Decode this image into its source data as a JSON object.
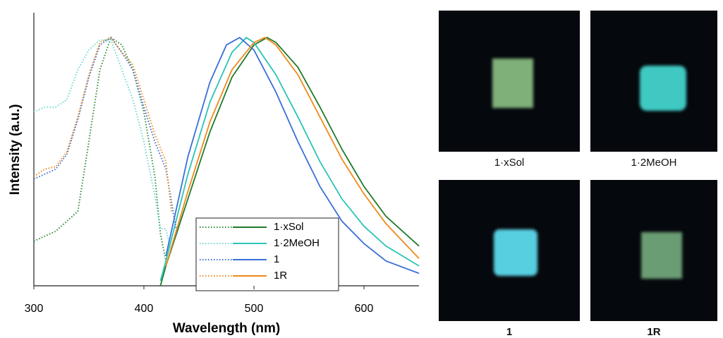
{
  "chart_data": {
    "type": "line",
    "xlabel": "Wavelength (nm)",
    "ylabel": "Intensity (a.u.)",
    "xlim": [
      300,
      650
    ],
    "xticks": [
      300,
      400,
      500,
      600
    ],
    "ylim": [
      0,
      1.1
    ],
    "series": [
      {
        "name": "1·xSol",
        "color": "#1f7a2a",
        "light_color": "#2e8b3a",
        "excitation": {
          "x": [
            300,
            320,
            340,
            350,
            360,
            370,
            380,
            390,
            400,
            410,
            415,
            420
          ],
          "values": [
            0.18,
            0.22,
            0.3,
            0.58,
            0.87,
            1.0,
            0.97,
            0.87,
            0.7,
            0.44,
            0.21,
            0.1
          ]
        },
        "emission": {
          "x": [
            415,
            420,
            440,
            460,
            480,
            500,
            512,
            520,
            540,
            560,
            580,
            600,
            620,
            650
          ],
          "values": [
            0.0,
            0.08,
            0.35,
            0.62,
            0.84,
            0.97,
            1.0,
            0.98,
            0.88,
            0.72,
            0.55,
            0.4,
            0.28,
            0.16
          ]
        }
      },
      {
        "name": "1·2MeOH",
        "color": "#2bc4b4",
        "light_color": "#6fd6d0",
        "excitation": {
          "x": [
            300,
            310,
            320,
            330,
            340,
            350,
            360,
            370,
            380,
            390,
            400,
            410,
            415,
            420,
            425
          ],
          "values": [
            0.7,
            0.72,
            0.72,
            0.75,
            0.87,
            0.95,
            0.99,
            0.99,
            0.87,
            0.75,
            0.58,
            0.36,
            0.23,
            0.23,
            0.13
          ]
        },
        "emission": {
          "x": [
            415,
            420,
            440,
            460,
            480,
            493,
            500,
            520,
            540,
            560,
            580,
            600,
            620,
            650
          ],
          "values": [
            0.02,
            0.1,
            0.45,
            0.74,
            0.94,
            1.0,
            0.98,
            0.85,
            0.68,
            0.5,
            0.35,
            0.24,
            0.16,
            0.08
          ]
        }
      },
      {
        "name": "1",
        "color": "#3a6fd8",
        "light_color": "#3a6fd8",
        "excitation": {
          "x": [
            300,
            310,
            320,
            330,
            340,
            350,
            360,
            370,
            380,
            390,
            400,
            410,
            420,
            430
          ],
          "values": [
            0.43,
            0.45,
            0.47,
            0.53,
            0.67,
            0.84,
            0.97,
            1.0,
            0.94,
            0.87,
            0.72,
            0.58,
            0.47,
            0.21
          ]
        },
        "emission": {
          "x": [
            420,
            440,
            460,
            475,
            487,
            500,
            520,
            540,
            560,
            580,
            600,
            620,
            650
          ],
          "values": [
            0.12,
            0.52,
            0.82,
            0.97,
            1.0,
            0.95,
            0.78,
            0.58,
            0.4,
            0.26,
            0.17,
            0.1,
            0.05
          ]
        }
      },
      {
        "name": "1R",
        "color": "#f08a1c",
        "light_color": "#f08a1c",
        "excitation": {
          "x": [
            300,
            310,
            320,
            330,
            340,
            350,
            360,
            370,
            380,
            390,
            400,
            410,
            420,
            425
          ],
          "values": [
            0.44,
            0.47,
            0.48,
            0.54,
            0.68,
            0.85,
            0.98,
            1.0,
            0.94,
            0.89,
            0.75,
            0.61,
            0.5,
            0.3
          ]
        },
        "emission": {
          "x": [
            420,
            440,
            460,
            480,
            500,
            510,
            520,
            540,
            560,
            580,
            600,
            620,
            650
          ],
          "values": [
            0.08,
            0.38,
            0.66,
            0.87,
            0.98,
            1.0,
            0.97,
            0.85,
            0.68,
            0.51,
            0.37,
            0.25,
            0.11
          ]
        }
      }
    ]
  },
  "photos": [
    {
      "label": "1·xSol"
    },
    {
      "label": "1·2MeOH"
    },
    {
      "label": "1"
    },
    {
      "label": "1R"
    }
  ]
}
